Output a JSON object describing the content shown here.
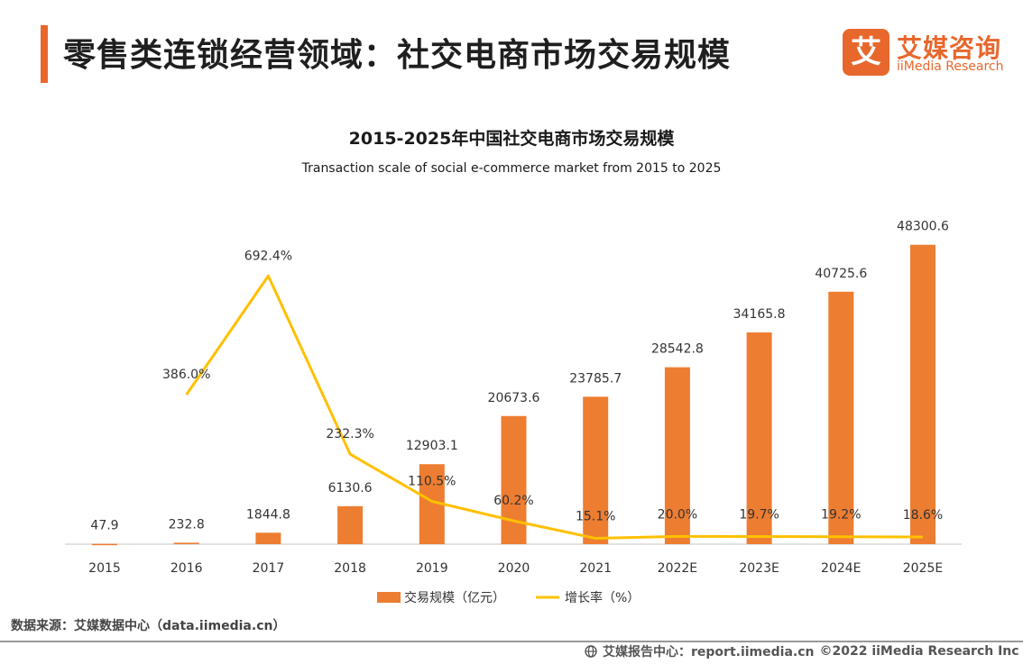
{
  "header": {
    "title": "零售类连锁经营领域：社交电商市场交易规模",
    "logo_cn": "艾媒咨询",
    "logo_en": "iiMedia Research",
    "logo_mark": "艾",
    "accent_color": "#e8672c"
  },
  "chart_data": {
    "type": "bar",
    "title": "2015-2025年中国社交电商市场交易规模",
    "subtitle": "Transaction scale of social e-commerce market from 2015 to 2025",
    "categories": [
      "2015",
      "2016",
      "2017",
      "2018",
      "2019",
      "2020",
      "2021",
      "2022E",
      "2023E",
      "2024E",
      "2025E"
    ],
    "series": [
      {
        "name": "交易规模（亿元）",
        "type": "bar",
        "color": "#ed7d31",
        "values": [
          47.9,
          232.8,
          1844.8,
          6130.6,
          12903.1,
          20673.6,
          23785.7,
          28542.8,
          34165.8,
          40725.6,
          48300.6
        ],
        "labels": [
          "47.9",
          "232.8",
          "1844.8",
          "6130.6",
          "12903.1",
          "20673.6",
          "23785.7",
          "28542.8",
          "34165.8",
          "40725.6",
          "48300.6"
        ]
      },
      {
        "name": "增长率（%）",
        "type": "line",
        "color": "#ffc000",
        "values": [
          null,
          386.0,
          692.4,
          232.3,
          110.5,
          60.2,
          15.1,
          20.0,
          19.7,
          19.2,
          18.6
        ],
        "labels": [
          "",
          "386.0%",
          "692.4%",
          "232.3%",
          "110.5%",
          "60.2%",
          "15.1%",
          "20.0%",
          "19.7%",
          "19.2%",
          "18.6%"
        ]
      }
    ],
    "ylim": [
      0,
      50000
    ],
    "ylim_secondary": [
      0,
      800
    ],
    "grid": false,
    "legend_position": "bottom"
  },
  "footer": {
    "source": "数据来源：艾媒数据中心（data.iimedia.cn）",
    "report": "艾媒报告中心：report.iimedia.cn",
    "copyright": "©2022 iiMedia Research Inc"
  }
}
